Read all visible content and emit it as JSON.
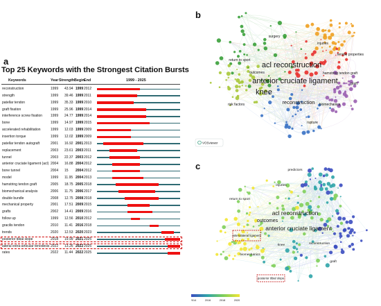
{
  "panel_a": {
    "letter": "a",
    "title": "Top 25 Keywords with the Strongest Citation Bursts",
    "headers": {
      "keywords": "Keywords",
      "year": "Year",
      "strength": "Strength",
      "begin": "Begin",
      "end": "End",
      "range": "1999 - 2025"
    },
    "timeline_start": 1999,
    "timeline_end": 2025,
    "rows": [
      {
        "keyword": "reconstruction",
        "year": "1999",
        "strength": "43.94",
        "begin": "1999",
        "end": "2012"
      },
      {
        "keyword": "strength",
        "year": "1999",
        "strength": "39.46",
        "begin": "1999",
        "end": "2011"
      },
      {
        "keyword": "patellar tendon",
        "year": "1999",
        "strength": "35.33",
        "begin": "1999",
        "end": "2010"
      },
      {
        "keyword": "graft fixation",
        "year": "1999",
        "strength": "25.96",
        "begin": "1999",
        "end": "2014"
      },
      {
        "keyword": "interference screw fixation",
        "year": "1999",
        "strength": "24.77",
        "begin": "1999",
        "end": "2014"
      },
      {
        "keyword": "bone",
        "year": "1999",
        "strength": "14.97",
        "begin": "1999",
        "end": "2015"
      },
      {
        "keyword": "accelerated rehabilitation",
        "year": "1999",
        "strength": "12.03",
        "begin": "1999",
        "end": "2009"
      },
      {
        "keyword": "insertion torque",
        "year": "1999",
        "strength": "12.02",
        "begin": "1999",
        "end": "2009"
      },
      {
        "keyword": "patellar tendon autograft",
        "year": "2001",
        "strength": "16.92",
        "begin": "2001",
        "end": "2013"
      },
      {
        "keyword": "replacement",
        "year": "2003",
        "strength": "23.61",
        "begin": "2003",
        "end": "2011"
      },
      {
        "keyword": "tunnel",
        "year": "2003",
        "strength": "22.37",
        "begin": "2003",
        "end": "2012"
      },
      {
        "keyword": "anterior cruciate ligament (acl)",
        "year": "2004",
        "strength": "16.88",
        "begin": "2004",
        "end": "2012"
      },
      {
        "keyword": "bone tunnel",
        "year": "2004",
        "strength": "15",
        "begin": "2004",
        "end": "2012"
      },
      {
        "keyword": "model",
        "year": "1999",
        "strength": "11.95",
        "begin": "2004",
        "end": "2013"
      },
      {
        "keyword": "hamstring tendon graft",
        "year": "2005",
        "strength": "18.75",
        "begin": "2005",
        "end": "2018"
      },
      {
        "keyword": "biomechanical analysis",
        "year": "2006",
        "strength": "11.75",
        "begin": "2006",
        "end": "2017"
      },
      {
        "keyword": "double bundle",
        "year": "2008",
        "strength": "12.75",
        "begin": "2008",
        "end": "2018"
      },
      {
        "keyword": "mechanical property",
        "year": "2001",
        "strength": "17.51",
        "begin": "2009",
        "end": "2015"
      },
      {
        "keyword": "grafts",
        "year": "2002",
        "strength": "14.41",
        "begin": "2009",
        "end": "2016"
      },
      {
        "keyword": "follow up",
        "year": "1999",
        "strength": "12.56",
        "begin": "2010",
        "end": "2012"
      },
      {
        "keyword": "gracilis tendon",
        "year": "2010",
        "strength": "11.41",
        "begin": "2016",
        "end": "2018"
      },
      {
        "keyword": "trends",
        "year": "2020",
        "strength": "12.53",
        "begin": "2020",
        "end": "2023"
      },
      {
        "keyword": "posterior tibial slope",
        "year": "2018",
        "strength": "19.99",
        "begin": "2021",
        "end": "2025"
      },
      {
        "keyword": "lateral extra-articular tenodesis",
        "year": "2022",
        "strength": "13.26",
        "begin": "2022",
        "end": "2025"
      },
      {
        "keyword": "rates",
        "year": "2022",
        "strength": "11.44",
        "begin": "2022",
        "end": "2025"
      }
    ],
    "highlighted_rows": [
      22,
      23
    ]
  },
  "panel_b": {
    "letter": "b",
    "watermark": "VOSviewer",
    "colors": [
      "#e8312f",
      "#3aa03a",
      "#3a72c4",
      "#a8c838",
      "#9a5fb0",
      "#f0a020"
    ],
    "labels": [
      {
        "text": "acl reconstruction",
        "size": "large"
      },
      {
        "text": "anterior cruciate ligament",
        "size": "large"
      },
      {
        "text": "knee",
        "size": "large"
      },
      {
        "text": "reconstruction",
        "size": "medium"
      },
      {
        "text": "return to sport",
        "size": "small"
      },
      {
        "text": "injuries",
        "size": "small"
      },
      {
        "text": "surgery",
        "size": "small"
      },
      {
        "text": "outcomes",
        "size": "small"
      },
      {
        "text": "biomechanics",
        "size": "small"
      },
      {
        "text": "risk factors",
        "size": "small"
      },
      {
        "text": "hamstring tendon graft",
        "size": "small"
      },
      {
        "text": "tensile properties",
        "size": "small"
      },
      {
        "text": "graft",
        "size": "small"
      },
      {
        "text": "rupture",
        "size": "small"
      }
    ]
  },
  "panel_c": {
    "letter": "c",
    "labels": [
      {
        "text": "acl reconstruction",
        "size": "large"
      },
      {
        "text": "anterior cruciate ligament",
        "size": "large"
      },
      {
        "text": "outcomes",
        "size": "medium"
      },
      {
        "text": "return to sport",
        "size": "small"
      },
      {
        "text": "injuries",
        "size": "small"
      },
      {
        "text": "predictors",
        "size": "small"
      },
      {
        "text": "reconstruction",
        "size": "small"
      },
      {
        "text": "graft",
        "size": "small"
      },
      {
        "text": "knee",
        "size": "small"
      },
      {
        "text": "biomechanics",
        "size": "small"
      }
    ],
    "boxed_labels": [
      "anterolateral ligament",
      "posterior tibial slope"
    ],
    "colorbar": {
      "colors": [
        "#3b4cc0",
        "#2fa4a8",
        "#7fcf5a",
        "#f2e633"
      ],
      "ticks": [
        "2014",
        "2016",
        "2018",
        "2020"
      ]
    }
  }
}
